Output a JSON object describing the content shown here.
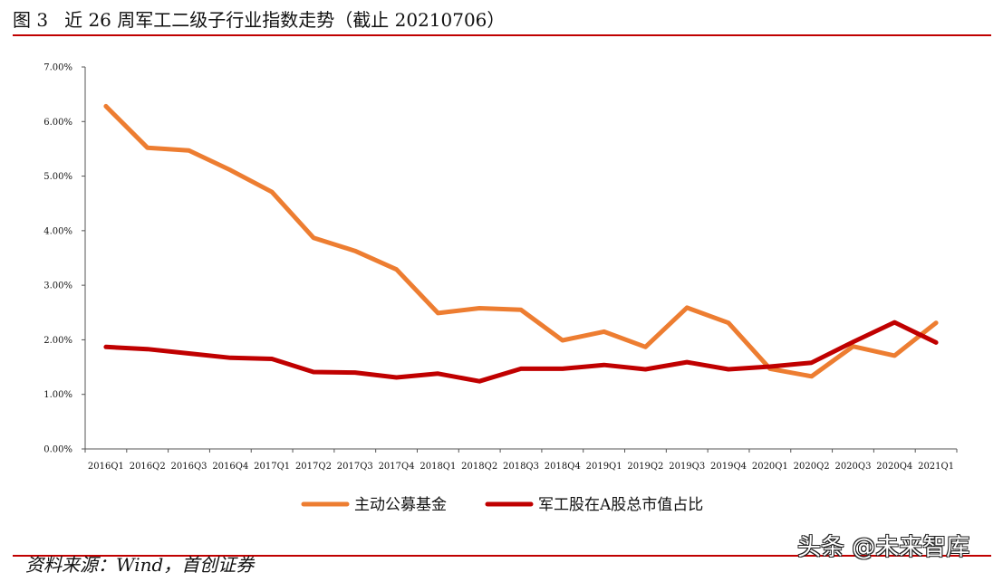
{
  "header": {
    "figure_label": "图 3",
    "title": "近 26 周军工二级子行业指数走势（截止 20210706）"
  },
  "footer": {
    "source": "资料来源：Wind，首创证券",
    "watermark": "头条 @未来智库"
  },
  "chart_data": {
    "type": "line",
    "title": "",
    "xlabel": "",
    "ylabel": "",
    "ylim": [
      0.0,
      7.0
    ],
    "y_ticks": [
      "0.00%",
      "1.00%",
      "2.00%",
      "3.00%",
      "4.00%",
      "5.00%",
      "6.00%",
      "7.00%"
    ],
    "categories": [
      "2016Q1",
      "2016Q2",
      "2016Q3",
      "2016Q4",
      "2017Q1",
      "2017Q2",
      "2017Q3",
      "2017Q4",
      "2018Q1",
      "2018Q2",
      "2018Q3",
      "2018Q4",
      "2019Q1",
      "2019Q2",
      "2019Q3",
      "2019Q4",
      "2020Q1",
      "2020Q2",
      "2020Q3",
      "2020Q4",
      "2021Q1"
    ],
    "series": [
      {
        "name": "主动公募基金",
        "color": "#ed7d31",
        "values": [
          6.28,
          5.52,
          5.47,
          5.11,
          4.71,
          3.87,
          3.63,
          3.29,
          2.49,
          2.58,
          2.55,
          1.99,
          2.15,
          1.87,
          2.59,
          2.31,
          1.47,
          1.33,
          1.88,
          1.71,
          2.31
        ]
      },
      {
        "name": "军工股在A股总市值占比",
        "color": "#c00000",
        "values": [
          1.87,
          1.83,
          1.75,
          1.67,
          1.65,
          1.41,
          1.4,
          1.31,
          1.38,
          1.24,
          1.47,
          1.47,
          1.54,
          1.46,
          1.59,
          1.46,
          1.51,
          1.58,
          1.96,
          2.32,
          1.95
        ]
      }
    ],
    "grid": false,
    "legend_position": "bottom"
  }
}
